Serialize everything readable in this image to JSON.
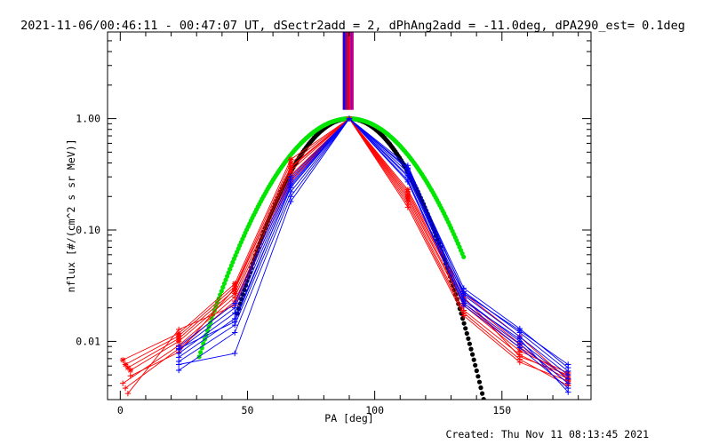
{
  "chart_data": {
    "type": "line",
    "title": "2021-11-06/00:46:11 - 00:47:07 UT, dSectr2add = 2, dPhAng2add = -11.0deg, dPA290_est=  0.1deg",
    "xlabel": "PA [deg]",
    "ylabel": "nflux [#/(cm^2 s sr MeV)]",
    "xlim": [
      -5,
      185
    ],
    "ylim": [
      0.003,
      6
    ],
    "yscale": "log",
    "grid": false,
    "xticks": [
      0,
      50,
      100,
      150
    ],
    "yticks": [
      {
        "v": 0.01,
        "label": "0.01"
      },
      {
        "v": 0.1,
        "label": "0.10"
      },
      {
        "v": 1.0,
        "label": "1.00"
      }
    ],
    "colors": {
      "red": "#ff0000",
      "blue": "#0000ff",
      "black": "#000000",
      "green": "#00e600",
      "magenta": "#c800c8"
    },
    "series": [
      {
        "color": "red",
        "marker": "star",
        "x": [
          1,
          23,
          45,
          67,
          90,
          113,
          135,
          157,
          176
        ],
        "y": [
          0.0068,
          0.0118,
          0.033,
          0.43,
          1.0,
          0.23,
          0.027,
          0.011,
          0.0045
        ]
      },
      {
        "color": "red",
        "marker": "star",
        "x": [
          2,
          23,
          45,
          67,
          90,
          113,
          135,
          157,
          176
        ],
        "y": [
          0.0062,
          0.0112,
          0.031,
          0.4,
          1.0,
          0.21,
          0.024,
          0.0095,
          0.0042
        ]
      },
      {
        "color": "red",
        "marker": "star",
        "x": [
          3,
          23,
          45,
          67,
          90,
          113,
          135,
          157,
          176
        ],
        "y": [
          0.0058,
          0.0106,
          0.029,
          0.37,
          1.0,
          0.2,
          0.022,
          0.0088,
          0.0048
        ]
      },
      {
        "color": "red",
        "marker": "star",
        "x": [
          4,
          23,
          45,
          67,
          90,
          113,
          135,
          157,
          176
        ],
        "y": [
          0.0055,
          0.01,
          0.027,
          0.34,
          1.0,
          0.19,
          0.021,
          0.0082,
          0.0052
        ]
      },
      {
        "color": "red",
        "marker": "plus",
        "x": [
          1,
          23,
          45,
          67,
          90,
          113,
          135,
          157,
          176
        ],
        "y": [
          0.0042,
          0.0092,
          0.025,
          0.31,
          1.0,
          0.18,
          0.019,
          0.0076,
          0.0046
        ]
      },
      {
        "color": "red",
        "marker": "plus",
        "x": [
          2,
          23,
          45,
          67,
          90,
          113,
          135,
          157,
          176
        ],
        "y": [
          0.0038,
          0.0086,
          0.023,
          0.29,
          1.0,
          0.17,
          0.018,
          0.0069,
          0.004
        ]
      },
      {
        "color": "red",
        "marker": "plus",
        "x": [
          3,
          23,
          45,
          67,
          90,
          113,
          135,
          157,
          176
        ],
        "y": [
          0.0034,
          0.0128,
          0.021,
          0.27,
          1.0,
          0.16,
          0.017,
          0.0065,
          0.0044
        ]
      },
      {
        "color": "red",
        "marker": "plus",
        "x": [
          4,
          23,
          45,
          67,
          90,
          113,
          135,
          157,
          176
        ],
        "y": [
          0.0049,
          0.008,
          0.03,
          0.36,
          1.0,
          0.22,
          0.025,
          0.0073,
          0.005
        ]
      },
      {
        "color": "blue",
        "marker": "plus",
        "x": [
          23,
          45,
          67,
          90,
          113,
          135,
          157,
          176
        ],
        "y": [
          0.009,
          0.022,
          0.3,
          1.0,
          0.36,
          0.03,
          0.013,
          0.0058
        ]
      },
      {
        "color": "blue",
        "marker": "plus",
        "x": [
          23,
          45,
          67,
          90,
          113,
          135,
          157,
          176
        ],
        "y": [
          0.0084,
          0.02,
          0.28,
          1.0,
          0.33,
          0.028,
          0.012,
          0.0054
        ]
      },
      {
        "color": "blue",
        "marker": "plus",
        "x": [
          23,
          45,
          67,
          90,
          113,
          135,
          157,
          176
        ],
        "y": [
          0.0078,
          0.018,
          0.26,
          1.0,
          0.31,
          0.026,
          0.011,
          0.005
        ]
      },
      {
        "color": "blue",
        "marker": "plus",
        "x": [
          23,
          45,
          67,
          90,
          113,
          135,
          157,
          176
        ],
        "y": [
          0.0072,
          0.016,
          0.24,
          1.0,
          0.3,
          0.024,
          0.01,
          0.0046
        ]
      },
      {
        "color": "blue",
        "marker": "plus",
        "x": [
          23,
          45,
          67,
          90,
          113,
          135,
          157,
          176
        ],
        "y": [
          0.0066,
          0.014,
          0.22,
          1.0,
          0.28,
          0.022,
          0.0094,
          0.0042
        ]
      },
      {
        "color": "blue",
        "marker": "plus",
        "x": [
          23,
          45,
          67,
          90,
          113,
          135,
          157,
          176
        ],
        "y": [
          0.0055,
          0.012,
          0.2,
          1.0,
          0.27,
          0.021,
          0.0088,
          0.0038
        ]
      },
      {
        "color": "blue",
        "marker": "plus",
        "x": [
          23,
          45,
          67,
          90,
          113,
          135,
          157,
          176
        ],
        "y": [
          0.0062,
          0.0078,
          0.18,
          1.0,
          0.35,
          0.023,
          0.0105,
          0.0035
        ]
      },
      {
        "color": "blue",
        "marker": "plus",
        "x": [
          23,
          45,
          67,
          90,
          113,
          135,
          157,
          176
        ],
        "y": [
          0.0086,
          0.015,
          0.25,
          1.0,
          0.38,
          0.027,
          0.0125,
          0.0062
        ]
      }
    ],
    "fits": [
      {
        "color": "black",
        "kind": "gaussian",
        "x_range": [
          46,
          146
        ],
        "center": 90,
        "sigma": 15.5
      },
      {
        "color": "green",
        "kind": "gaussian",
        "x_range": [
          31,
          135
        ],
        "center": 90,
        "sigma": 18.8
      }
    ],
    "vertical_band": {
      "x": [
        87.5,
        91.5
      ],
      "y_from": 1.2,
      "colors": [
        "blue",
        "red",
        "magenta"
      ]
    },
    "footer": "Created: Thu Nov 11 08:13:45 2021"
  }
}
